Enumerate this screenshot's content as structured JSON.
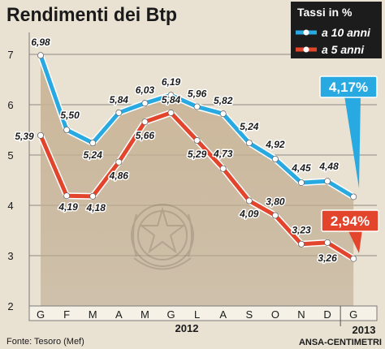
{
  "chart_data": {
    "type": "line",
    "title": "Rendimenti dei Btp",
    "legend": {
      "title": "Tassi in %",
      "placement": "top-right",
      "entries": [
        {
          "label": "a 10 anni",
          "color": "#29a9e1"
        },
        {
          "label": "a 5 anni",
          "color": "#e2442c"
        }
      ]
    },
    "categories": [
      "G",
      "F",
      "M",
      "A",
      "M",
      "G",
      "L",
      "A",
      "S",
      "O",
      "N",
      "D",
      "G"
    ],
    "year_labels": [
      "2012",
      "2013"
    ],
    "ylim": [
      2,
      7
    ],
    "yticks": [
      2,
      3,
      4,
      5,
      6,
      7
    ],
    "grid": true,
    "series": [
      {
        "name": "a 10 anni",
        "color": "#29a9e1",
        "values": [
          6.98,
          5.5,
          5.24,
          5.84,
          6.03,
          6.19,
          5.96,
          5.82,
          5.24,
          4.92,
          4.45,
          4.48,
          4.17
        ],
        "labels": [
          "6,98",
          "5,50",
          "5,24",
          "5,84",
          "6,03",
          "6,19",
          "5,96",
          "5,82",
          "5,24",
          "4,92",
          "4,45",
          "4,48",
          ""
        ],
        "callout": "4,17%"
      },
      {
        "name": "a 5 anni",
        "color": "#e2442c",
        "values": [
          5.39,
          4.19,
          4.18,
          4.86,
          5.66,
          5.84,
          5.29,
          4.73,
          4.09,
          3.8,
          3.23,
          3.26,
          2.94
        ],
        "labels": [
          "5,39",
          "4,19",
          "4,18",
          "4,86",
          "5,66",
          "5,84",
          "5,29",
          "4,73",
          "4,09",
          "3,80",
          "3,23",
          "3,26",
          ""
        ],
        "callout": "2,94%"
      }
    ]
  },
  "source": "Fonte: Tesoro (Mef)",
  "credit": "ANSA-CENTIMETRI"
}
